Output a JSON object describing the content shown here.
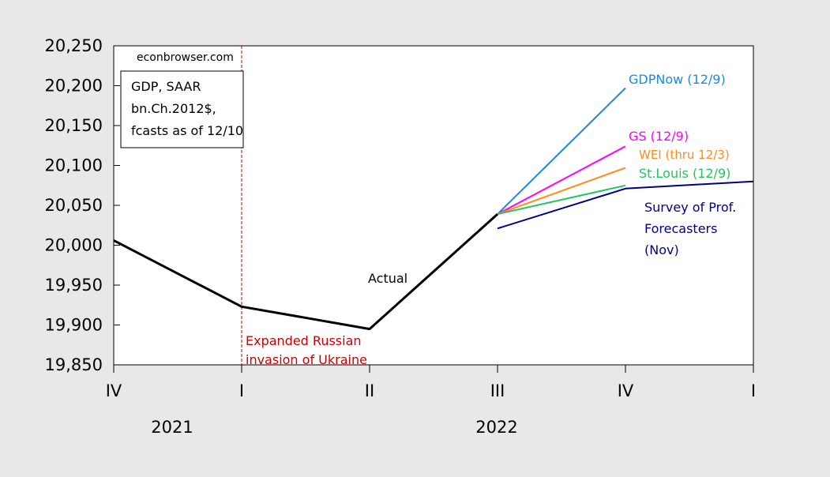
{
  "chart_data": {
    "type": "line",
    "watermark": "econbrowser.com",
    "legend_box": [
      "GDP, SAAR",
      "bn.Ch.2012$,",
      "fcasts as of 12/10"
    ],
    "x_ticks": [
      "IV",
      "I",
      "II",
      "III",
      "IV",
      "I"
    ],
    "year_labels": [
      "2021",
      "2022"
    ],
    "ylim": [
      19850,
      20250
    ],
    "y_ticks": [
      {
        "value": 20250,
        "label": "20,250"
      },
      {
        "value": 20200,
        "label": "20,200"
      },
      {
        "value": 20150,
        "label": "20,150"
      },
      {
        "value": 20100,
        "label": "20,100"
      },
      {
        "value": 20050,
        "label": "20,050"
      },
      {
        "value": 20000,
        "label": "20,000"
      },
      {
        "value": 19950,
        "label": "19,950"
      },
      {
        "value": 19900,
        "label": "19,900"
      },
      {
        "value": 19850,
        "label": "19,850"
      }
    ],
    "event_line": {
      "x": 1,
      "label": [
        "Expanded Russian",
        "invasion of Ukraine"
      ],
      "color": "#cc0000"
    },
    "series": [
      {
        "name": "Actual",
        "color": "#000000",
        "x": [
          0,
          1,
          2,
          3
        ],
        "y": [
          20006,
          19923,
          19895,
          20039
        ]
      },
      {
        "name": "GDPNow (12/9)",
        "color": "#1e88e5",
        "x": [
          3,
          4
        ],
        "y": [
          20039,
          20197
        ]
      },
      {
        "name": "GS (12/9)",
        "color": "#ff00ff",
        "x": [
          3,
          4
        ],
        "y": [
          20039,
          20124
        ]
      },
      {
        "name": "WEI (thru 12/3)",
        "color": "#ff8c1a",
        "x": [
          3,
          4
        ],
        "y": [
          20039,
          20097
        ]
      },
      {
        "name": "St.Louis (12/9)",
        "color": "#22c55e",
        "x": [
          3,
          4
        ],
        "y": [
          20039,
          20075
        ]
      },
      {
        "name": "Survey of Prof. Forecasters (Nov)",
        "label_lines": [
          "Survey of Prof.",
          "Forecasters",
          "(Nov)"
        ],
        "color": "#00008b",
        "x": [
          3,
          4,
          5
        ],
        "y": [
          20021,
          20071,
          20080
        ]
      }
    ]
  }
}
